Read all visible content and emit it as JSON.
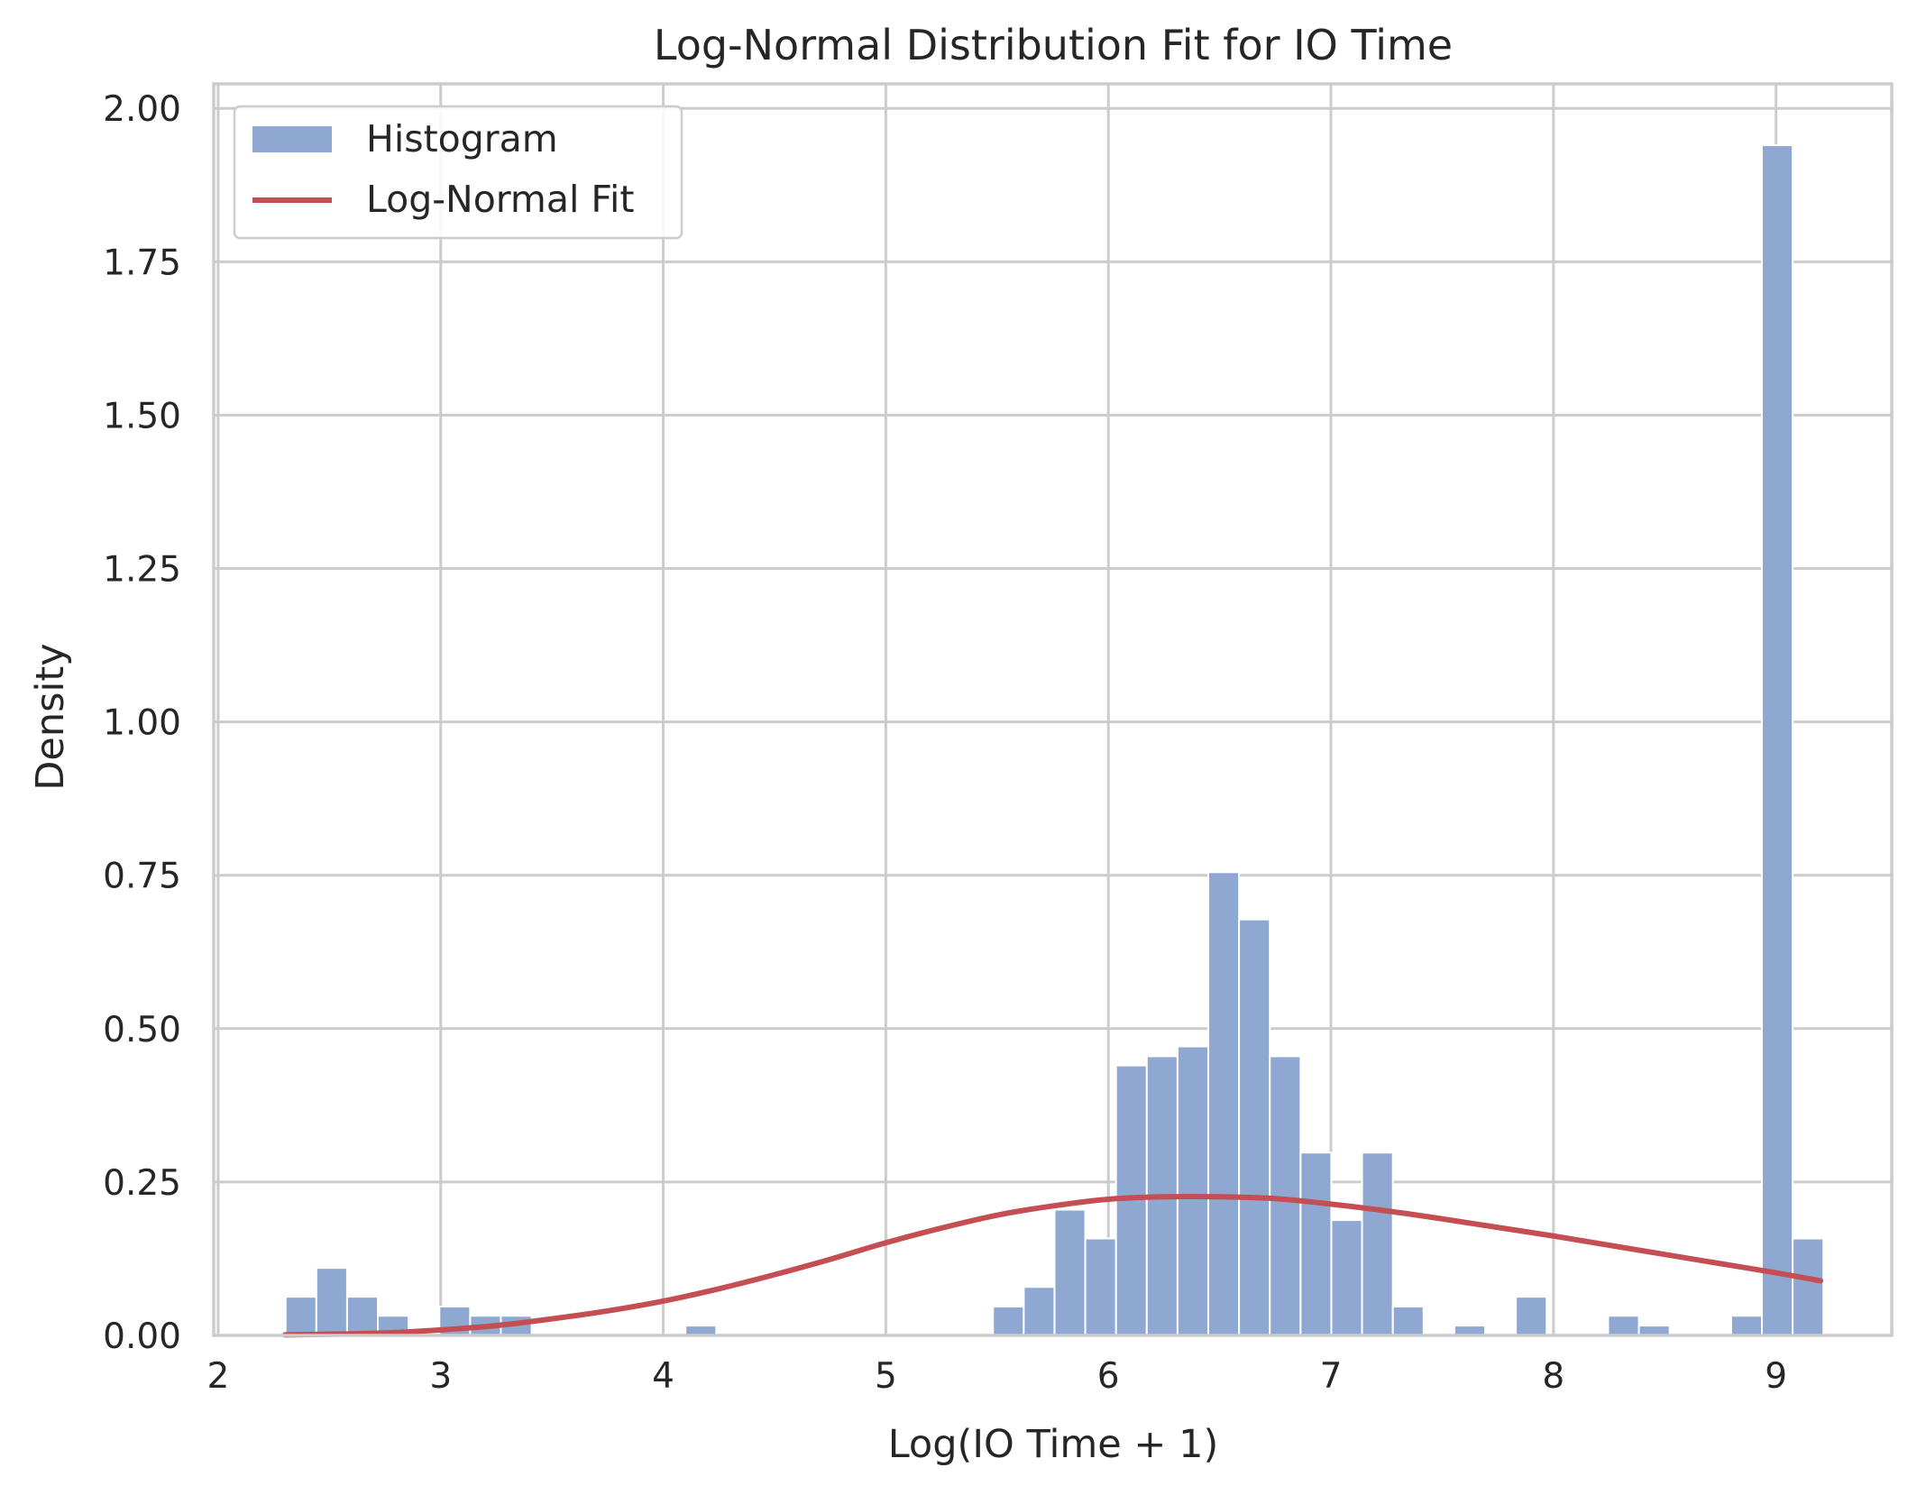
{
  "chart_data": {
    "type": "bar",
    "title": "Log-Normal Distribution Fit for IO Time",
    "xlabel": "Log(IO Time + 1)",
    "ylabel": "Density",
    "xlim": [
      1.98,
      9.52
    ],
    "ylim": [
      0,
      2.04
    ],
    "xticks": [
      2,
      3,
      4,
      5,
      6,
      7,
      8,
      9
    ],
    "xtick_labels": [
      "2",
      "3",
      "4",
      "5",
      "6",
      "7",
      "8",
      "9"
    ],
    "yticks": [
      0,
      0.25,
      0.5,
      0.75,
      1.0,
      1.25,
      1.5,
      1.75,
      2.0
    ],
    "ytick_labels": [
      "0.00",
      "0.25",
      "0.50",
      "0.75",
      "1.00",
      "1.25",
      "1.50",
      "1.75",
      "2.00"
    ],
    "grid": true,
    "legend_position": "top-left",
    "colors": {
      "histogram": "#8fa8d1",
      "histogram_edge": "#ffffff",
      "fit": "#c44e52",
      "grid": "#cccccc",
      "spine": "#cccccc"
    },
    "histogram": {
      "name": "Histogram",
      "bin_start": 2.303,
      "bin_width": 0.1382,
      "densities": [
        0.063,
        0.11,
        0.063,
        0.032,
        0,
        0.047,
        0.032,
        0.032,
        0,
        0,
        0,
        0,
        0,
        0.016,
        0,
        0,
        0,
        0,
        0,
        0,
        0,
        0,
        0,
        0.047,
        0.079,
        0.205,
        0.158,
        0.44,
        0.455,
        0.471,
        0.755,
        0.678,
        0.455,
        0.298,
        0.188,
        0.298,
        0.047,
        0,
        0.016,
        0,
        0.063,
        0,
        0,
        0.032,
        0.016,
        0,
        0,
        0.032,
        1.94,
        0.158
      ]
    },
    "fit": {
      "name": "Log-Normal Fit",
      "x": [
        2.3,
        2.5,
        2.75,
        3.0,
        3.25,
        3.5,
        3.75,
        4.0,
        4.25,
        4.5,
        4.75,
        5.0,
        5.25,
        5.5,
        5.75,
        6.0,
        6.25,
        6.5,
        6.75,
        7.0,
        7.25,
        7.5,
        7.75,
        8.0,
        8.25,
        8.5,
        8.75,
        9.0,
        9.2
      ],
      "y": [
        0.001,
        0.002,
        0.004,
        0.009,
        0.016,
        0.027,
        0.04,
        0.056,
        0.076,
        0.099,
        0.124,
        0.151,
        0.175,
        0.196,
        0.211,
        0.222,
        0.226,
        0.226,
        0.223,
        0.214,
        0.203,
        0.19,
        0.176,
        0.162,
        0.147,
        0.132,
        0.117,
        0.102,
        0.089
      ]
    }
  }
}
